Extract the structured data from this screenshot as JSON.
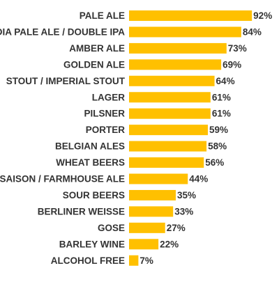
{
  "chart_data": {
    "type": "bar",
    "orientation": "horizontal",
    "categories": [
      "PALE ALE",
      "INDIA PALE ALE / DOUBLE IPA",
      "AMBER ALE",
      "GOLDEN ALE",
      "STOUT / IMPERIAL STOUT",
      "LAGER",
      "PILSNER",
      "PORTER",
      "BELGIAN ALES",
      "WHEAT BEERS",
      "SAISON / FARMHOUSE ALE",
      "SOUR BEERS",
      "BERLINER WEISSE",
      "GOSE",
      "BARLEY WINE",
      "ALCOHOL FREE"
    ],
    "values": [
      92,
      84,
      73,
      69,
      64,
      61,
      61,
      59,
      58,
      56,
      44,
      35,
      33,
      27,
      22,
      7
    ],
    "value_labels": [
      "92%",
      "84%",
      "73%",
      "69%",
      "64%",
      "61%",
      "61%",
      "59%",
      "58%",
      "56%",
      "44%",
      "35%",
      "33%",
      "27%",
      "22%",
      "7%"
    ],
    "xlim": [
      0,
      100
    ],
    "grid": false,
    "legend": "none",
    "bar_color": "#FFC000",
    "text_color": "#333333"
  }
}
